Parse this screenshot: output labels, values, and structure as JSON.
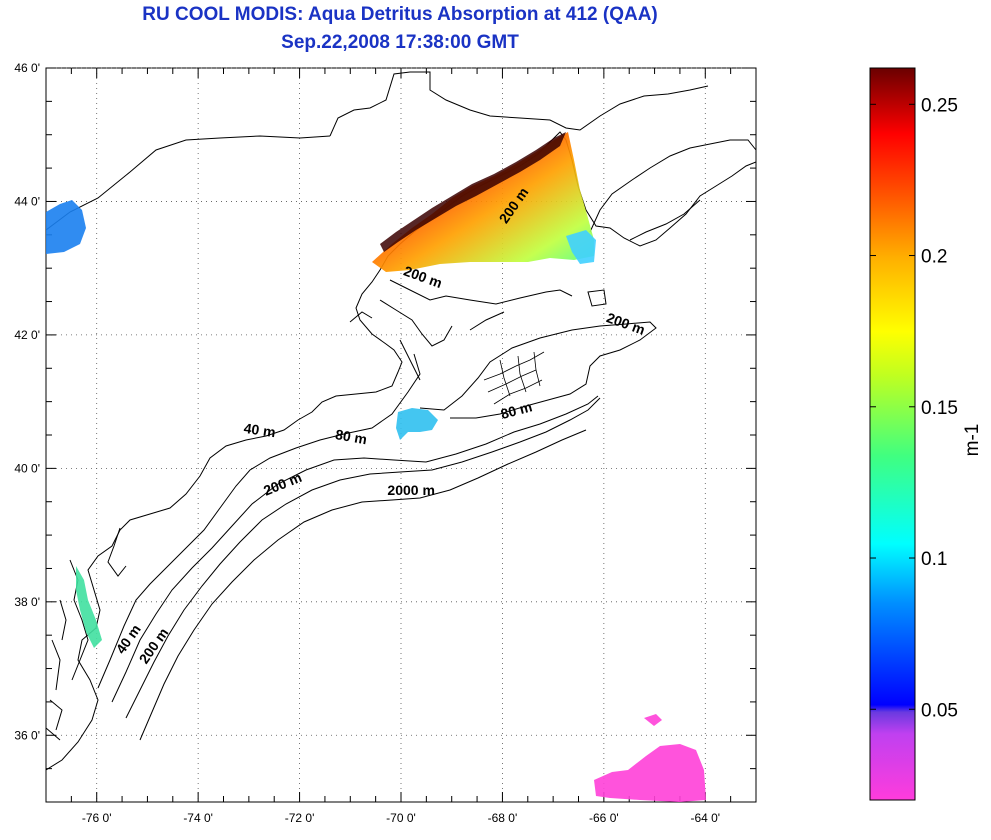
{
  "header": {
    "title": "RU COOL MODIS: Aqua Detritus Absorption at 412 (QAA)",
    "subtitle": "Sep.22,2008 17:38:00 GMT"
  },
  "map": {
    "lon_range": [
      -77,
      -63
    ],
    "lat_range": [
      35,
      46
    ],
    "lon_ticks": [
      {
        "value": -76,
        "label": "-76 0'"
      },
      {
        "value": -74,
        "label": "-74 0'"
      },
      {
        "value": -72,
        "label": "-72 0'"
      },
      {
        "value": -70,
        "label": "-70 0'"
      },
      {
        "value": -68,
        "label": "-68 0'"
      },
      {
        "value": -66,
        "label": "-66 0'"
      },
      {
        "value": -64,
        "label": "-64 0'"
      }
    ],
    "lat_ticks": [
      {
        "value": 36,
        "label": "36 0'"
      },
      {
        "value": 38,
        "label": "38 0'"
      },
      {
        "value": 40,
        "label": "40 0'"
      },
      {
        "value": 42,
        "label": "42 0'"
      },
      {
        "value": 44,
        "label": "44 0'"
      },
      {
        "value": 46,
        "label": "46 0'"
      }
    ],
    "grid": "dotted",
    "contour_labels": [
      {
        "text": "200 m",
        "lon": -67.7,
        "lat": 43.9
      },
      {
        "text": "200 m",
        "lon": -69.6,
        "lat": 42.8
      },
      {
        "text": "200 m",
        "lon": -65.6,
        "lat": 42.1
      },
      {
        "text": "80 m",
        "lon": -67.7,
        "lat": 40.8
      },
      {
        "text": "80 m",
        "lon": -71.0,
        "lat": 40.4
      },
      {
        "text": "40 m",
        "lon": -72.8,
        "lat": 40.5
      },
      {
        "text": "200 m",
        "lon": -72.3,
        "lat": 39.7
      },
      {
        "text": "2000 m",
        "lon": -69.8,
        "lat": 39.6
      },
      {
        "text": "40 m",
        "lon": -75.3,
        "lat": 37.4
      },
      {
        "text": "200 m",
        "lon": -74.8,
        "lat": 37.3
      }
    ]
  },
  "colorbar": {
    "range": [
      0.02,
      0.262
    ],
    "ticks": [
      {
        "value": 0.05,
        "label": "0.05"
      },
      {
        "value": 0.1,
        "label": "0.1"
      },
      {
        "value": 0.15,
        "label": "0.15"
      },
      {
        "value": 0.2,
        "label": "0.2"
      },
      {
        "value": 0.25,
        "label": "0.25"
      }
    ],
    "unit_label": "m-1",
    "colors": [
      "#ff3cdc",
      "#b040ff",
      "#6a3ae0",
      "#0000ff",
      "#0090ff",
      "#00ffff",
      "#40ff80",
      "#c0ff20",
      "#ffff00",
      "#ffb000",
      "#ff5000",
      "#ff0000",
      "#7a0000"
    ]
  }
}
